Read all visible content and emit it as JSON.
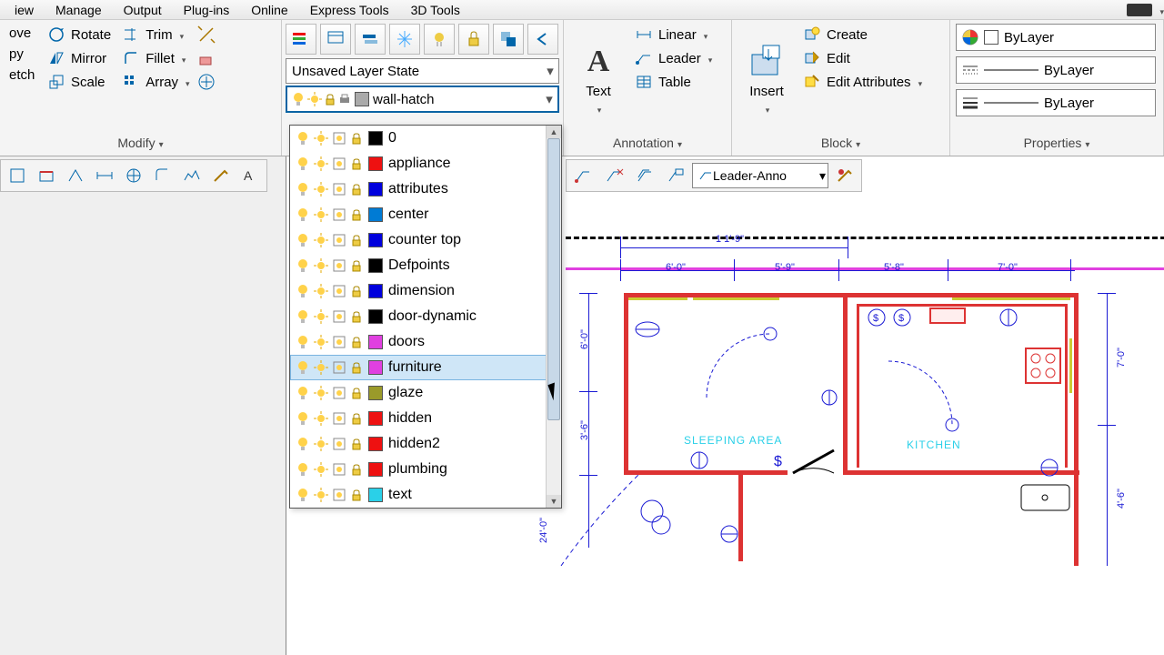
{
  "menu": [
    "iew",
    "Manage",
    "Output",
    "Plug-ins",
    "Online",
    "Express Tools",
    "3D Tools"
  ],
  "modify_panel": {
    "title": "Modify",
    "col1": [
      "ove",
      "py",
      "etch"
    ],
    "col2": [
      {
        "icon": "rotate",
        "label": "Rotate"
      },
      {
        "icon": "mirror",
        "label": "Mirror"
      },
      {
        "icon": "scale",
        "label": "Scale"
      }
    ],
    "col3": [
      {
        "icon": "trim",
        "label": "Trim"
      },
      {
        "icon": "fillet",
        "label": "Fillet"
      },
      {
        "icon": "array",
        "label": "Array"
      }
    ]
  },
  "layers_panel": {
    "state_label": "Unsaved Layer State",
    "current_layer": "wall-hatch",
    "current_swatch_color": "#aaaaaa",
    "layers": [
      {
        "name": "0",
        "swatch": "c-black"
      },
      {
        "name": "appliance",
        "swatch": "c-red"
      },
      {
        "name": "attributes",
        "swatch": "c-blue"
      },
      {
        "name": "center",
        "swatch": "c-dblue"
      },
      {
        "name": "counter top",
        "swatch": "c-blue"
      },
      {
        "name": "Defpoints",
        "swatch": "c-black"
      },
      {
        "name": "dimension",
        "swatch": "c-blue"
      },
      {
        "name": "door-dynamic",
        "swatch": "c-black"
      },
      {
        "name": "doors",
        "swatch": "c-mag"
      },
      {
        "name": "furniture",
        "swatch": "c-mag",
        "selected": true
      },
      {
        "name": "glaze",
        "swatch": "c-olive"
      },
      {
        "name": "hidden",
        "swatch": "c-red"
      },
      {
        "name": "hidden2",
        "swatch": "c-red"
      },
      {
        "name": "plumbing",
        "swatch": "c-red"
      },
      {
        "name": "text",
        "swatch": "c-cyan"
      }
    ]
  },
  "annotation_panel": {
    "title": "Annotation",
    "text_label": "Text",
    "items": [
      {
        "icon": "linear",
        "label": "Linear"
      },
      {
        "icon": "leader",
        "label": "Leader"
      },
      {
        "icon": "table",
        "label": "Table"
      }
    ]
  },
  "block_panel": {
    "title": "Block",
    "insert_label": "Insert",
    "items": [
      {
        "icon": "create",
        "label": "Create"
      },
      {
        "icon": "edit",
        "label": "Edit"
      },
      {
        "icon": "editattr",
        "label": "Edit Attributes"
      }
    ]
  },
  "props_panel": {
    "title": "Properties",
    "rows": [
      {
        "kind": "color",
        "value": "ByLayer"
      },
      {
        "kind": "line",
        "value": "ByLayer"
      },
      {
        "kind": "weight",
        "value": "ByLayer"
      }
    ]
  },
  "leader_combo": "Leader-Anno",
  "plan": {
    "colors": {
      "dim": "#1a1ad4",
      "wall": "#d33333",
      "accent": "#ccbb33",
      "magenta": "#e040e0",
      "cyan": "#2ad0e8"
    },
    "dims_top": {
      "overall": "1 1'-9\"",
      "a": "6'-0\"",
      "b": "5'-9\"",
      "c": "5'-8\"",
      "d": "7'-0\""
    },
    "dims_left": {
      "a": "6'-0\"",
      "b": "3'-6\"",
      "c": "24'-0\""
    },
    "dims_right": {
      "a": "7'-0\"",
      "b": "4'-6\""
    },
    "rooms": {
      "sleeping": "SLEEPING AREA",
      "kitchen": "KITCHEN"
    }
  }
}
